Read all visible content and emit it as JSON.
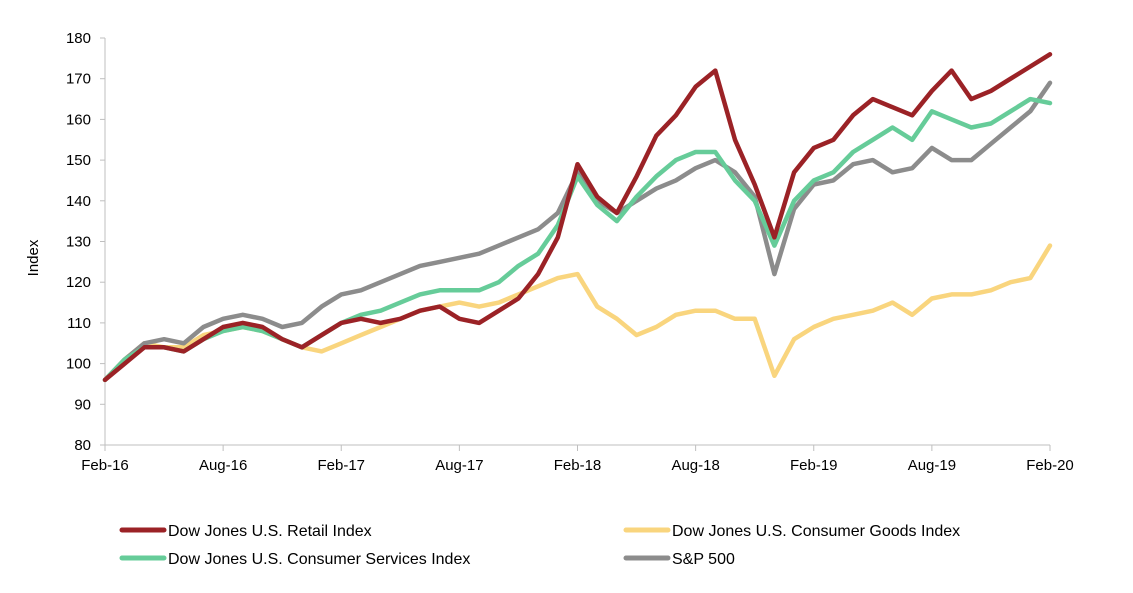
{
  "chart_data": {
    "type": "line",
    "title": "",
    "xlabel": "",
    "ylabel": "Index",
    "ylim": [
      80,
      180
    ],
    "yticks": [
      80,
      90,
      100,
      110,
      120,
      130,
      140,
      150,
      160,
      170,
      180
    ],
    "xtick_labels": [
      "Feb-16",
      "Aug-16",
      "Feb-17",
      "Aug-17",
      "Feb-18",
      "Aug-18",
      "Feb-19",
      "Aug-19",
      "Feb-20"
    ],
    "grid": false,
    "legend_position": "bottom",
    "x": [
      "2016-02",
      "2016-03",
      "2016-04",
      "2016-05",
      "2016-06",
      "2016-07",
      "2016-08",
      "2016-09",
      "2016-10",
      "2016-11",
      "2016-12",
      "2017-01",
      "2017-02",
      "2017-03",
      "2017-04",
      "2017-05",
      "2017-06",
      "2017-07",
      "2017-08",
      "2017-09",
      "2017-10",
      "2017-11",
      "2017-12",
      "2018-01",
      "2018-02",
      "2018-03",
      "2018-04",
      "2018-05",
      "2018-06",
      "2018-07",
      "2018-08",
      "2018-09",
      "2018-10",
      "2018-11",
      "2018-12",
      "2019-01",
      "2019-02",
      "2019-03",
      "2019-04",
      "2019-05",
      "2019-06",
      "2019-07",
      "2019-08",
      "2019-09",
      "2019-10",
      "2019-11",
      "2019-12",
      "2020-01",
      "2020-02"
    ],
    "series": [
      {
        "name": "Dow Jones U.S. Retail Index",
        "color": "#9B2226",
        "values": [
          96,
          100,
          104,
          104,
          103,
          106,
          109,
          110,
          109,
          106,
          104,
          107,
          110,
          111,
          110,
          111,
          113,
          114,
          111,
          110,
          113,
          116,
          122,
          131,
          149,
          141,
          137,
          146,
          156,
          161,
          168,
          172,
          155,
          144,
          131,
          147,
          153,
          155,
          161,
          165,
          163,
          161,
          167,
          172,
          165,
          167,
          170,
          173,
          176
        ]
      },
      {
        "name": "Dow Jones U.S. Consumer Goods Index",
        "color": "#F9D57E",
        "values": [
          96,
          101,
          105,
          104,
          104,
          107,
          108,
          109,
          108,
          106,
          104,
          103,
          105,
          107,
          109,
          111,
          113,
          114,
          115,
          114,
          115,
          117,
          119,
          121,
          122,
          114,
          111,
          107,
          109,
          112,
          113,
          113,
          111,
          111,
          97,
          106,
          109,
          111,
          112,
          113,
          115,
          112,
          116,
          117,
          117,
          118,
          120,
          121,
          129
        ]
      },
      {
        "name": "Dow Jones U.S. Consumer Services Index",
        "color": "#66CC99",
        "values": [
          96,
          101,
          104,
          104,
          103,
          106,
          108,
          109,
          108,
          106,
          104,
          107,
          110,
          112,
          113,
          115,
          117,
          118,
          118,
          118,
          120,
          124,
          127,
          134,
          146,
          139,
          135,
          141,
          146,
          150,
          152,
          152,
          145,
          140,
          129,
          140,
          145,
          147,
          152,
          155,
          158,
          155,
          162,
          160,
          158,
          159,
          162,
          165,
          164
        ]
      },
      {
        "name": "S&P 500",
        "color": "#8C8C8C",
        "values": [
          96,
          101,
          105,
          106,
          105,
          109,
          111,
          112,
          111,
          109,
          110,
          114,
          117,
          118,
          120,
          122,
          124,
          125,
          126,
          127,
          129,
          131,
          133,
          137,
          147,
          140,
          137,
          140,
          143,
          145,
          148,
          150,
          147,
          141,
          122,
          138,
          144,
          145,
          149,
          150,
          147,
          148,
          153,
          150,
          150,
          154,
          158,
          162,
          169
        ]
      }
    ]
  }
}
